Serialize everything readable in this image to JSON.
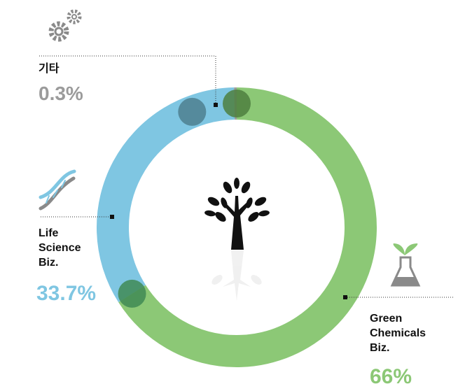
{
  "chart_data": {
    "type": "donut",
    "categories": [
      "기타",
      "Life Science Biz.",
      "Green Chemicals Biz."
    ],
    "values": [
      0.3,
      33.7,
      66
    ],
    "value_labels": [
      "0.3%",
      "33.7%",
      "66%"
    ],
    "colors": [
      "#9b9b9b",
      "#7fc6e2",
      "#8cc876"
    ]
  }
}
